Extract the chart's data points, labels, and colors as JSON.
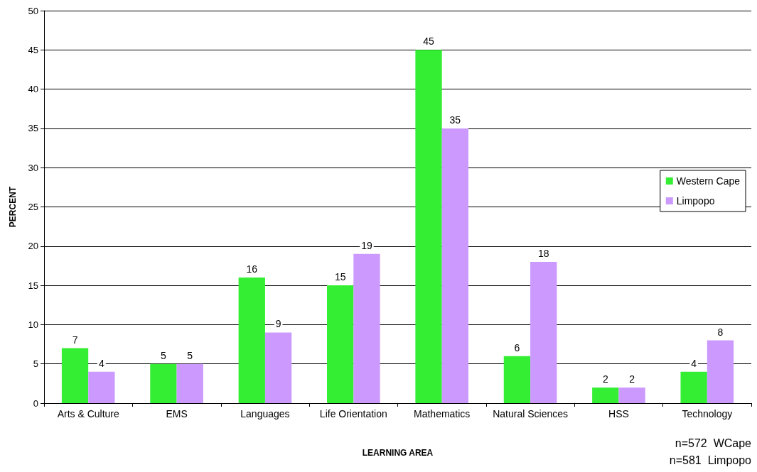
{
  "chart_data": {
    "type": "bar",
    "xlabel": "LEARNING AREA",
    "ylabel": "PERCENT",
    "categories": [
      "Arts & Culture",
      "EMS",
      "Languages",
      "Life Orientation",
      "Mathematics",
      "Natural Sciences",
      "HSS",
      "Technology"
    ],
    "series": [
      {
        "name": "Western Cape",
        "color": "#33ee33",
        "values": [
          7,
          5,
          16,
          15,
          45,
          6,
          2,
          4
        ]
      },
      {
        "name": "Limpopo",
        "color": "#cc99ff",
        "values": [
          4,
          5,
          9,
          19,
          35,
          18,
          2,
          8
        ]
      }
    ],
    "ylim": [
      0,
      50
    ],
    "yticks": [
      0,
      5,
      10,
      15,
      20,
      25,
      30,
      35,
      40,
      45,
      50
    ],
    "grid": "y",
    "legend": "right",
    "data_labels": true,
    "annotations": [
      "n=572  WCape",
      "n=581  Limpopo"
    ]
  }
}
